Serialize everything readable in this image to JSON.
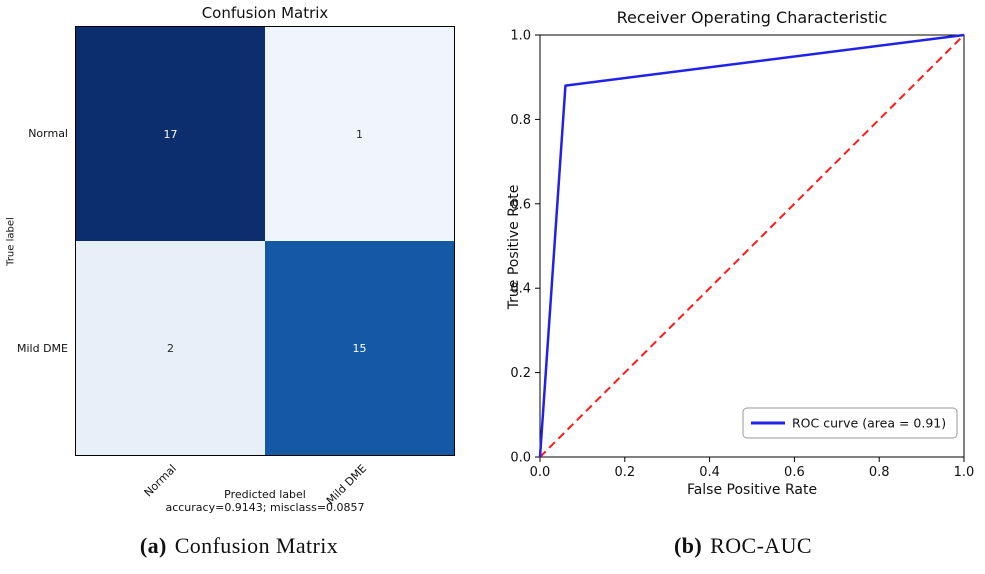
{
  "chart_data": [
    {
      "type": "heatmap",
      "title": "Confusion Matrix",
      "xlabel": "Predicted label",
      "ylabel": "True label",
      "categories": [
        "Normal",
        "Mild DME"
      ],
      "matrix": [
        [
          17,
          1
        ],
        [
          2,
          15
        ]
      ],
      "cell_colors": [
        [
          "#0c2e6e",
          "#eff5fb"
        ],
        [
          "#e7eff8",
          "#1459a6"
        ]
      ],
      "cell_text_colors": [
        [
          "#ffffff",
          "#2a2a2a"
        ],
        [
          "#2a2a2a",
          "#ffffff"
        ]
      ],
      "colormap": "Blues",
      "footnote": "accuracy=0.9143; misclass=0.0857",
      "caption_label": "(a)",
      "caption_text": "Confusion Matrix"
    },
    {
      "type": "line",
      "title": "Receiver Operating Characteristic",
      "xlabel": "False Positive Rate",
      "ylabel": "True Positive Rate",
      "xlim": [
        0.0,
        1.0
      ],
      "ylim": [
        0.0,
        1.0
      ],
      "xticks": [
        0.0,
        0.2,
        0.4,
        0.6,
        0.8,
        1.0
      ],
      "yticks": [
        0.0,
        0.2,
        0.4,
        0.6,
        0.8,
        1.0
      ],
      "series": [
        {
          "name": "ROC curve (area = 0.91)",
          "color": "#2222e6",
          "style": "solid",
          "x": [
            0.0,
            0.06,
            1.0
          ],
          "y": [
            0.0,
            0.88,
            1.0
          ]
        },
        {
          "name": "",
          "color": "#ff1a1a",
          "style": "dashed",
          "x": [
            0.0,
            1.0
          ],
          "y": [
            0.0,
            1.0
          ]
        }
      ],
      "legend": {
        "position": "lower right",
        "entries": [
          "ROC curve (area = 0.91)"
        ]
      },
      "caption_label": "(b)",
      "caption_text": "ROC-AUC"
    }
  ]
}
